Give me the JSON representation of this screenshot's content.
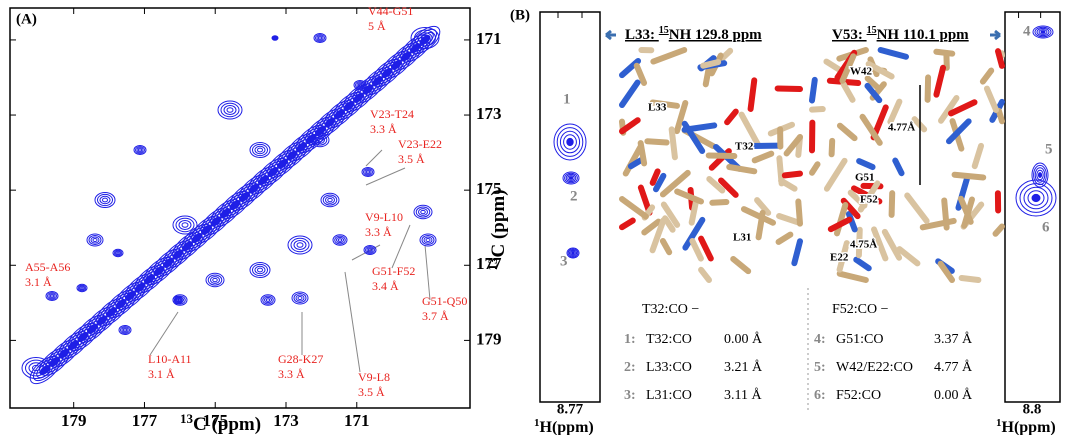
{
  "panel_a": {
    "label": "(A)",
    "x_axis": {
      "sup": "13",
      "text": "C  (ppm)"
    },
    "y_axis": {
      "sup": "13",
      "text": "C (ppm)"
    },
    "xlim": [
      180.8,
      167.8
    ],
    "ylim": [
      170.15,
      180.8
    ],
    "xticks": [
      179,
      177,
      175,
      173,
      171
    ],
    "yticks": [
      171,
      173,
      175,
      177,
      179
    ],
    "annotations": [
      {
        "pair": "V44-G51",
        "distance": "5 Å"
      },
      {
        "pair": "V23-T24",
        "distance": "3.3 Å"
      },
      {
        "pair": "V23-E22",
        "distance": "3.5 Å"
      },
      {
        "pair": "V9-L10",
        "distance": "3.3 Å"
      },
      {
        "pair": "G51-F52",
        "distance": "3.4 Å"
      },
      {
        "pair": "G51-Q50",
        "distance": "3.7 Å"
      },
      {
        "pair": "A55-A56",
        "distance": "3.1 Å"
      },
      {
        "pair": "L10-A11",
        "distance": "3.1 Å"
      },
      {
        "pair": "G28-K27",
        "distance": "3.3 Å"
      },
      {
        "pair": "V9-L8",
        "distance": "3.5 Å"
      }
    ]
  },
  "panel_b": {
    "label": "(B)",
    "strips": [
      {
        "ppm": 8.77,
        "axis": {
          "sup": "1",
          "text": "H(ppm)"
        },
        "peaks": [
          "1",
          "2",
          "3"
        ]
      },
      {
        "ppm": 8.8,
        "axis": {
          "sup": "1",
          "text": "H(ppm)"
        },
        "peaks": [
          "4",
          "5",
          "6"
        ]
      }
    ],
    "structures": [
      {
        "title": {
          "pre": "L33: ",
          "sup": "15",
          "post": "NH 129.8 ppm"
        },
        "atoms": [
          "L33",
          "T32",
          "L31"
        ],
        "table_header": "T32:CO −",
        "rows": [
          [
            "1:",
            "T32:CO",
            "0.00 Å"
          ],
          [
            "2:",
            "L33:CO",
            "3.21 Å"
          ],
          [
            "3:",
            "L31:CO",
            "3.11 Å"
          ]
        ]
      },
      {
        "title": {
          "pre": "V53: ",
          "sup": "15",
          "post": "NH 110.1 ppm"
        },
        "atoms": [
          "W42",
          "4.77Å",
          "G51",
          "F52",
          "4.75Å",
          "E22"
        ],
        "table_header": "F52:CO −",
        "rows": [
          [
            "4:",
            "G51:CO",
            "3.37 Å"
          ],
          [
            "5:",
            "W42/E22:CO",
            "4.77 Å"
          ],
          [
            "6:",
            "F52:CO",
            "0.00 Å"
          ]
        ]
      }
    ]
  }
}
